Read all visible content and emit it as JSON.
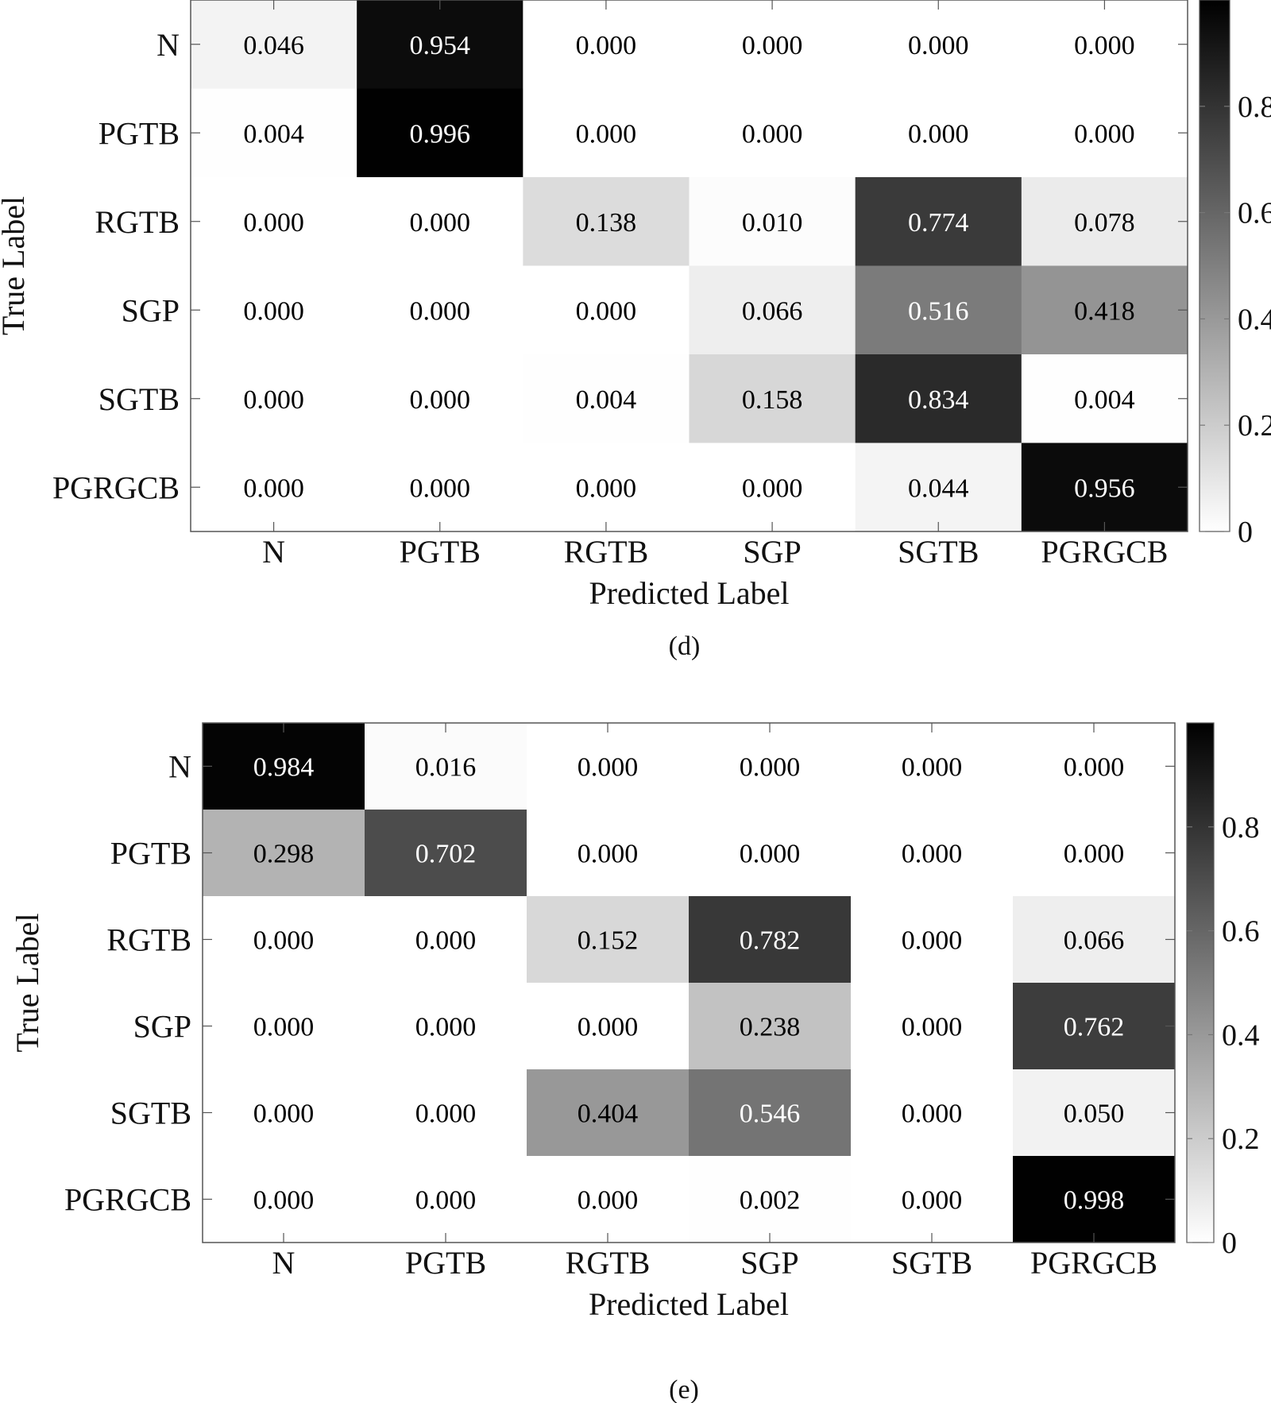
{
  "chart_data": [
    {
      "type": "heatmap",
      "caption": "(d)",
      "xlabel": "Predicted Label",
      "ylabel": "True Label",
      "x_categories": [
        "N",
        "PGTB",
        "RGTB",
        "SGP",
        "SGTB",
        "PGRGCB"
      ],
      "y_categories": [
        "N",
        "PGTB",
        "RGTB",
        "SGP",
        "SGTB",
        "PGRGCB"
      ],
      "values": [
        [
          "0.046",
          "0.954",
          "0.000",
          "0.000",
          "0.000",
          "0.000"
        ],
        [
          "0.004",
          "0.996",
          "0.000",
          "0.000",
          "0.000",
          "0.000"
        ],
        [
          "0.000",
          "0.000",
          "0.138",
          "0.010",
          "0.774",
          "0.078"
        ],
        [
          "0.000",
          "0.000",
          "0.000",
          "0.066",
          "0.516",
          "0.418"
        ],
        [
          "0.000",
          "0.000",
          "0.004",
          "0.158",
          "0.834",
          "0.004"
        ],
        [
          "0.000",
          "0.000",
          "0.000",
          "0.000",
          "0.044",
          "0.956"
        ]
      ],
      "colorbar": {
        "ticks": [
          "0",
          "0.2",
          "0.4",
          "0.6",
          "0.8"
        ],
        "range": [
          0,
          1
        ],
        "colormap": "white-to-black"
      }
    },
    {
      "type": "heatmap",
      "caption": "(e)",
      "xlabel": "Predicted Label",
      "ylabel": "True Label",
      "x_categories": [
        "N",
        "PGTB",
        "RGTB",
        "SGP",
        "SGTB",
        "PGRGCB"
      ],
      "y_categories": [
        "N",
        "PGTB",
        "RGTB",
        "SGP",
        "SGTB",
        "PGRGCB"
      ],
      "values": [
        [
          "0.984",
          "0.016",
          "0.000",
          "0.000",
          "0.000",
          "0.000"
        ],
        [
          "0.298",
          "0.702",
          "0.000",
          "0.000",
          "0.000",
          "0.000"
        ],
        [
          "0.000",
          "0.000",
          "0.152",
          "0.782",
          "0.000",
          "0.066"
        ],
        [
          "0.000",
          "0.000",
          "0.000",
          "0.238",
          "0.000",
          "0.762"
        ],
        [
          "0.000",
          "0.000",
          "0.404",
          "0.546",
          "0.000",
          "0.050"
        ],
        [
          "0.000",
          "0.000",
          "0.000",
          "0.002",
          "0.000",
          "0.998"
        ]
      ],
      "colorbar": {
        "ticks": [
          "0",
          "0.2",
          "0.4",
          "0.6",
          "0.8"
        ],
        "range": [
          0,
          1
        ],
        "colormap": "white-to-black"
      }
    }
  ]
}
